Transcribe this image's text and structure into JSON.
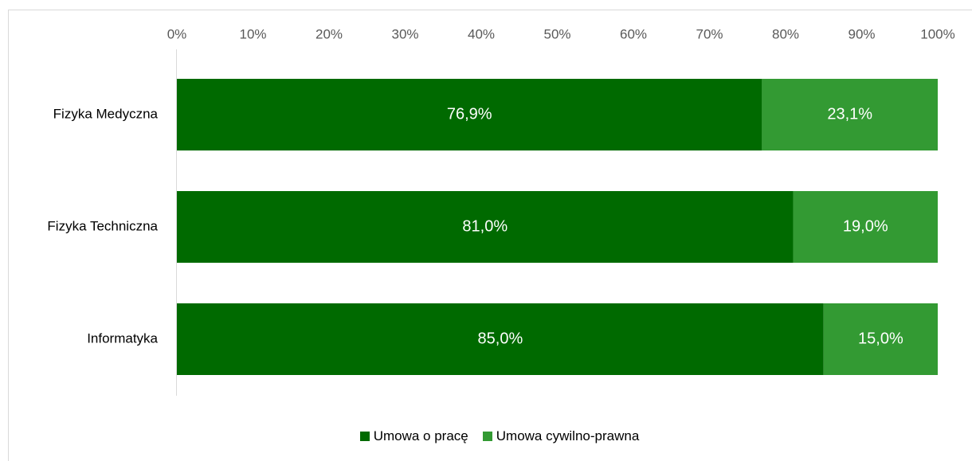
{
  "chart_data": {
    "type": "stacked-barh",
    "categories": [
      "Fizyka Medyczna",
      "Fizyka Techniczna",
      "Informatyka"
    ],
    "series": [
      {
        "name": "Umowa o pracę",
        "color": "#006a00",
        "values": [
          76.9,
          81.0,
          85.0
        ],
        "value_labels": [
          "76,9%",
          "81,0%",
          "85,0%"
        ]
      },
      {
        "name": "Umowa cywilno-prawna",
        "color": "#339a33",
        "values": [
          23.1,
          19.0,
          15.0
        ],
        "value_labels": [
          "23,1%",
          "19,0%",
          "15,0%"
        ]
      }
    ],
    "xlim": [
      0,
      100
    ],
    "xticks": [
      {
        "value": 0,
        "label": "0%"
      },
      {
        "value": 10,
        "label": "10%"
      },
      {
        "value": 20,
        "label": "20%"
      },
      {
        "value": 30,
        "label": "30%"
      },
      {
        "value": 40,
        "label": "40%"
      },
      {
        "value": 50,
        "label": "50%"
      },
      {
        "value": 60,
        "label": "60%"
      },
      {
        "value": 70,
        "label": "70%"
      },
      {
        "value": 80,
        "label": "80%"
      },
      {
        "value": 90,
        "label": "90%"
      },
      {
        "value": 100,
        "label": "100%"
      }
    ],
    "legend": "bottom"
  }
}
